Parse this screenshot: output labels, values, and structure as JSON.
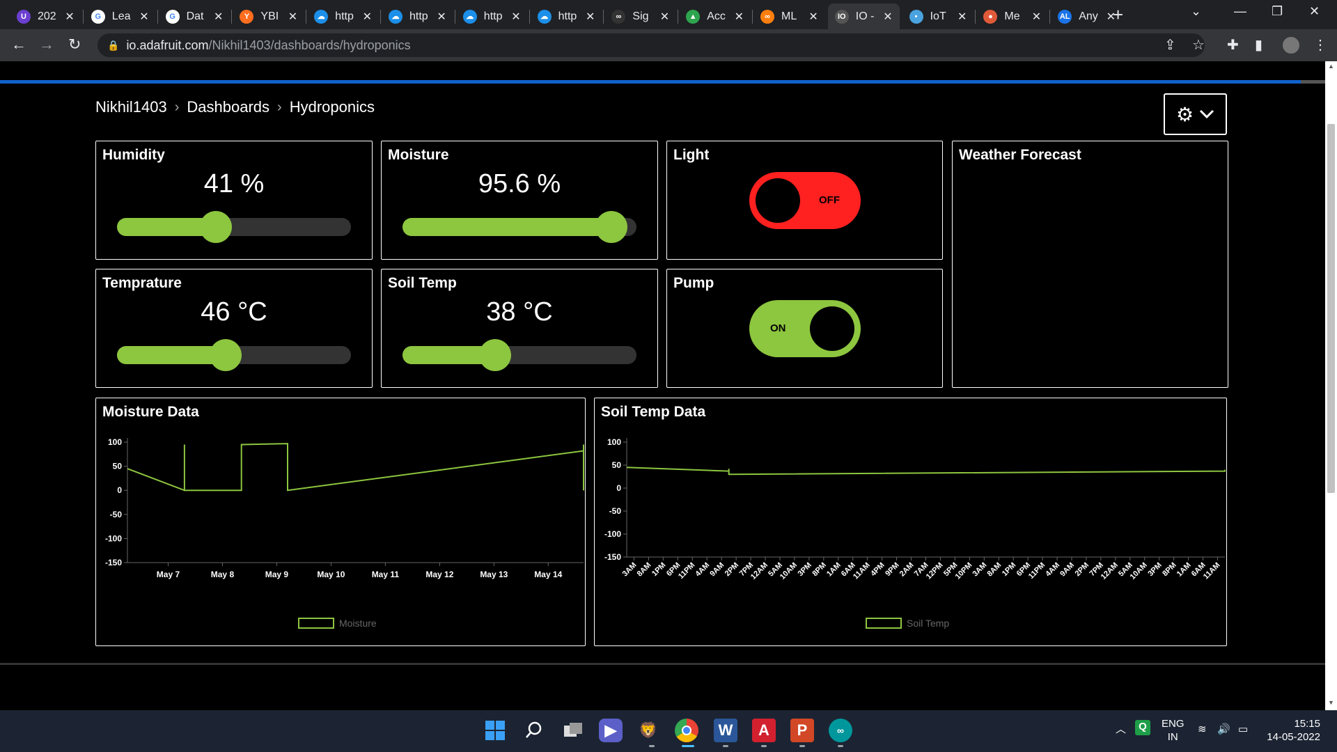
{
  "browser": {
    "tabs": [
      {
        "title": "202",
        "fav_color": "#6b3fd1",
        "fav_glyph": "U"
      },
      {
        "title": "Lea",
        "fav_color": "#ffffff",
        "fav_glyph": "G"
      },
      {
        "title": "Dat",
        "fav_color": "#ffffff",
        "fav_glyph": "G"
      },
      {
        "title": "YBI",
        "fav_color": "#ff6d1f",
        "fav_glyph": "Y"
      },
      {
        "title": "http",
        "fav_color": "#1c8fe8",
        "fav_glyph": "☁"
      },
      {
        "title": "http",
        "fav_color": "#1c8fe8",
        "fav_glyph": "☁"
      },
      {
        "title": "http",
        "fav_color": "#1c8fe8",
        "fav_glyph": "☁"
      },
      {
        "title": "http",
        "fav_color": "#1c8fe8",
        "fav_glyph": "☁"
      },
      {
        "title": "Sig",
        "fav_color": "#333333",
        "fav_glyph": "∞"
      },
      {
        "title": "Acc",
        "fav_color": "#2ea44f",
        "fav_glyph": "▲"
      },
      {
        "title": "ML",
        "fav_color": "#ff7f0e",
        "fav_glyph": "∞"
      },
      {
        "title": "IO -",
        "fav_color": "#555555",
        "fav_glyph": "IO"
      },
      {
        "title": "IoT",
        "fav_color": "#4aa3df",
        "fav_glyph": "•"
      },
      {
        "title": "Me",
        "fav_color": "#e05a3a",
        "fav_glyph": "●"
      },
      {
        "title": "Any",
        "fav_color": "#1a73e8",
        "fav_glyph": "AL"
      }
    ],
    "active_tab_index": 11,
    "url_host": "io.adafruit.com",
    "url_path": "/Nikhil1403/dashboards/hydroponics"
  },
  "breadcrumb": {
    "user": "Nikhil1403",
    "section": "Dashboards",
    "page": "Hydroponics"
  },
  "colors": {
    "accent_green": "#8dc63f",
    "off_red": "#ff2020",
    "track_dark": "#333333"
  },
  "blocks": {
    "humidity": {
      "title": "Humidity",
      "value_text": "41 %",
      "fraction": 0.41
    },
    "moisture": {
      "title": "Moisture",
      "value_text": "95.6 %",
      "fraction": 0.956
    },
    "light": {
      "title": "Light",
      "state": "OFF"
    },
    "weather": {
      "title": "Weather Forecast"
    },
    "temperature": {
      "title": "Temprature",
      "value_text": "46 °C",
      "fraction": 0.46
    },
    "soil_temp": {
      "title": "Soil Temp",
      "value_text": "38 °C",
      "fraction": 0.38
    },
    "pump": {
      "title": "Pump",
      "state": "ON"
    }
  },
  "charts": {
    "moisture_title": "Moisture Data",
    "soil_title": "Soil Temp Data"
  },
  "chart_data": [
    {
      "type": "line",
      "title": "Moisture Data",
      "x_tick_labels": [
        "May 7",
        "May 8",
        "May 9",
        "May 10",
        "May 11",
        "May 12",
        "May 13",
        "May 14"
      ],
      "y_ticks": [
        100,
        50,
        0,
        -50,
        -100,
        -150
      ],
      "ylim": [
        -150,
        100
      ],
      "xlim": [
        6.25,
        14.65
      ],
      "series": [
        {
          "name": "Moisture",
          "x": [
            6.25,
            7.3,
            7.3,
            7.3,
            8.35,
            8.35,
            9.2,
            9.2,
            9.2,
            14.65,
            14.65,
            14.65
          ],
          "y": [
            45,
            0,
            95,
            0,
            0,
            95,
            97,
            97,
            0,
            82,
            95,
            0
          ]
        }
      ],
      "legend": "bottom-center"
    },
    {
      "type": "line",
      "title": "Soil Temp Data",
      "x_tick_labels": [
        "3AM",
        "8AM",
        "1PM",
        "6PM",
        "11PM",
        "4AM",
        "9AM",
        "2PM",
        "7PM",
        "12AM",
        "5AM",
        "10AM",
        "3PM",
        "8PM",
        "1AM",
        "6AM",
        "11AM",
        "4PM",
        "9PM",
        "2AM",
        "7AM",
        "12PM",
        "5PM",
        "10PM",
        "3AM",
        "8AM",
        "1PM",
        "6PM",
        "11PM",
        "4AM",
        "9AM",
        "2PM",
        "7PM",
        "12AM",
        "5AM",
        "10AM",
        "3PM",
        "8PM",
        "1AM",
        "6AM",
        "11AM"
      ],
      "y_ticks": [
        100,
        50,
        0,
        -50,
        -100,
        -150
      ],
      "ylim": [
        -150,
        100
      ],
      "xlim": [
        0,
        41
      ],
      "series": [
        {
          "name": "Soil Temp",
          "x": [
            0,
            7,
            7,
            7,
            41,
            41,
            41
          ],
          "y": [
            45,
            37,
            42,
            30,
            37,
            40,
            37
          ]
        }
      ],
      "legend": "bottom-center"
    }
  ],
  "taskbar": {
    "lang_top": "ENG",
    "lang_bottom": "IN",
    "time": "15:15",
    "date": "14-05-2022"
  }
}
